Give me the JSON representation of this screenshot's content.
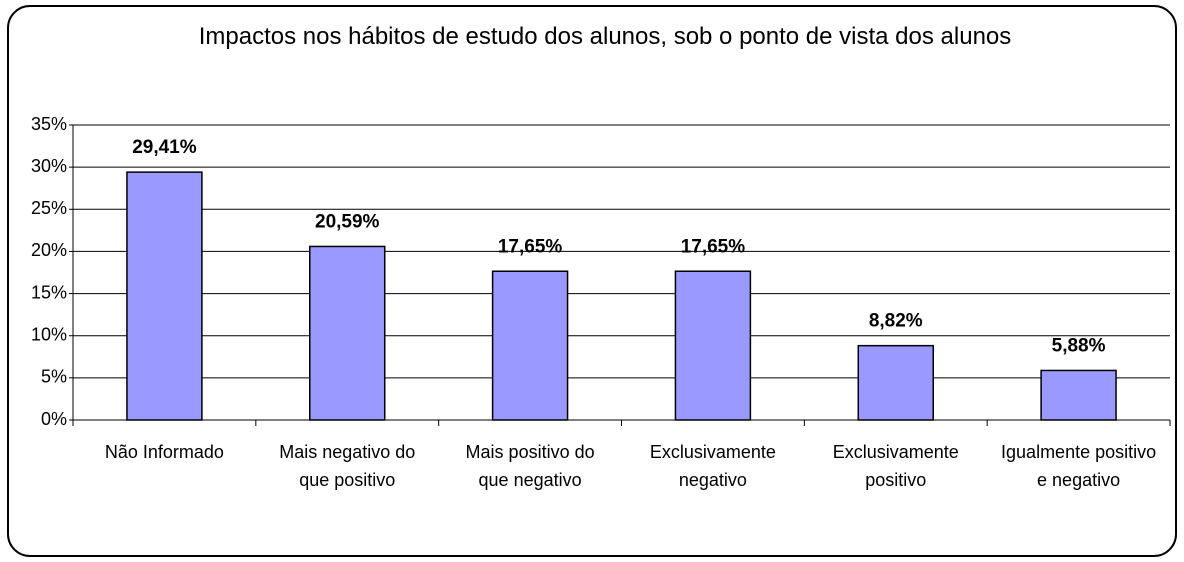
{
  "chart_data": {
    "type": "bar",
    "title": "Impactos nos hábitos de estudo dos alunos, sob o ponto de vista dos alunos",
    "categories": [
      "Não Informado",
      "Mais negativo do que positivo",
      "Mais positivo do que negativo",
      "Exclusivamente negativo",
      "Exclusivamente positivo",
      "Igualmente positivo e negativo"
    ],
    "values": [
      29.41,
      20.59,
      17.65,
      17.65,
      8.82,
      5.88
    ],
    "value_labels": [
      "29,41%",
      "20,59%",
      "17,65%",
      "17,65%",
      "8,82%",
      "5,88%"
    ],
    "color": "#9999ff",
    "ylim": [
      0,
      35
    ],
    "yticks": [
      {
        "value": 0,
        "label": "0%"
      },
      {
        "value": 5,
        "label": "5%"
      },
      {
        "value": 10,
        "label": "10%"
      },
      {
        "value": 15,
        "label": "15%"
      },
      {
        "value": 20,
        "label": "20%"
      },
      {
        "value": 25,
        "label": "25%"
      },
      {
        "value": 30,
        "label": "30%"
      },
      {
        "value": 35,
        "label": "35%"
      }
    ],
    "grid": true
  }
}
